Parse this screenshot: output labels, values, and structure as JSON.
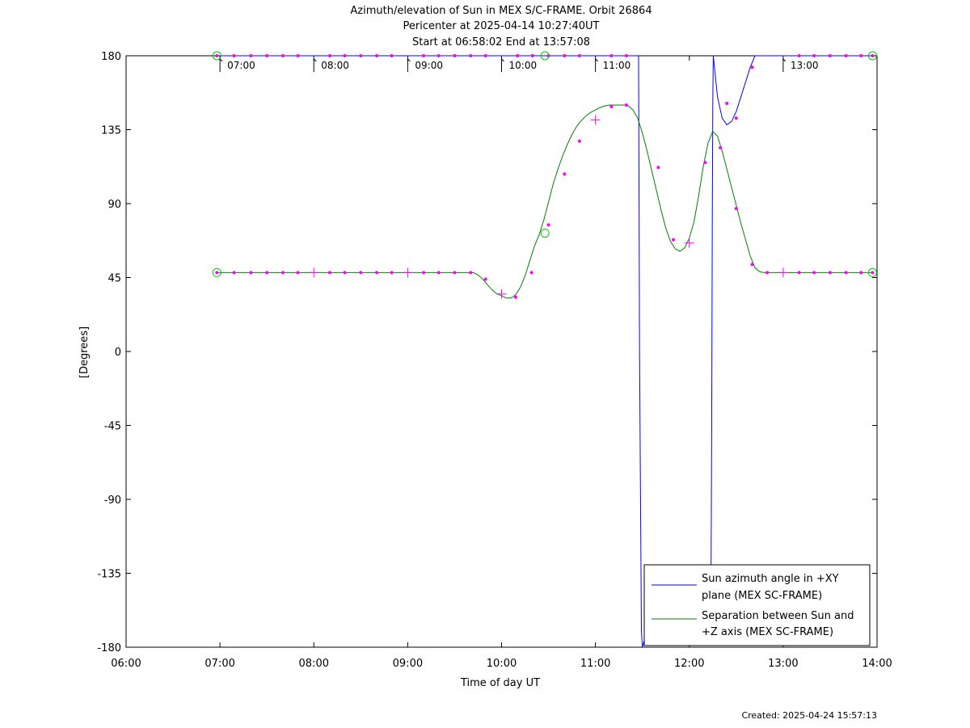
{
  "chart_data": {
    "type": "line",
    "title_lines": [
      "Azimuth/elevation of Sun in MEX S/C-FRAME.  Orbit 26864",
      "Pericenter at 2025-04-14 10:27:40UT",
      "Start at 06:58:02 End at 13:57:08"
    ],
    "xlabel": "Time of day UT",
    "ylabel": "[Degrees]",
    "xlim": [
      6,
      14
    ],
    "ylim": [
      -180,
      180
    ],
    "xtick_values": [
      6,
      7,
      8,
      9,
      10,
      11,
      12,
      13,
      14
    ],
    "xtick_labels": [
      "06:00",
      "07:00",
      "08:00",
      "09:00",
      "10:00",
      "11:00",
      "12:00",
      "13:00",
      "14:00"
    ],
    "ytick_values": [
      180,
      135,
      90,
      45,
      0,
      -45,
      -90,
      -135,
      -180
    ],
    "ytick_labels": [
      "180",
      "135",
      "90",
      "45",
      "0",
      "-45",
      "-90",
      "-135",
      "-180"
    ],
    "top_hour_marks": [
      {
        "x": 7,
        "label": "07:00"
      },
      {
        "x": 8,
        "label": "08:00"
      },
      {
        "x": 9,
        "label": "09:00"
      },
      {
        "x": 10,
        "label": "10:00"
      },
      {
        "x": 11,
        "label": "11:00"
      },
      {
        "x": 13,
        "label": "13:00"
      }
    ],
    "series": [
      {
        "name": "Sun azimuth angle in +XY plane (MEX SC-FRAME)",
        "legend_lines": [
          "Sun azimuth angle in +XY",
          "plane (MEX SC-FRAME)"
        ],
        "color": "#0000ff",
        "segments": [
          {
            "x": [
              6.967,
              7.0,
              8.0,
              9.0,
              10.0,
              11.0,
              11.3,
              11.45,
              11.46
            ],
            "y": [
              180,
              180,
              180,
              180,
              180,
              180,
              180,
              180,
              180
            ]
          },
          {
            "x": [
              11.46,
              11.465,
              11.47,
              11.48,
              11.49,
              11.5
            ],
            "y": [
              180,
              90,
              0,
              -90,
              -170,
              -180
            ]
          },
          {
            "x": [
              11.5,
              11.55
            ],
            "y": [
              -180,
              -170
            ]
          },
          {
            "x": [
              12.23,
              12.235,
              12.24,
              12.245,
              12.25,
              12.255
            ],
            "y": [
              -150,
              -100,
              -20,
              80,
              150,
              180
            ]
          },
          {
            "x": [
              12.255,
              12.3,
              12.35,
              12.4,
              12.45,
              12.5,
              12.55,
              12.6,
              12.65,
              12.7,
              12.75
            ],
            "y": [
              180,
              155,
              142,
              138,
              140,
              146,
              155,
              164,
              173,
              180,
              180
            ]
          },
          {
            "x": [
              12.75,
              13.0,
              13.5,
              13.95
            ],
            "y": [
              180,
              180,
              180,
              180
            ]
          }
        ]
      },
      {
        "name": "Separation between Sun and +Z axis (MEX SC-FRAME)",
        "legend_lines": [
          "Separation between Sun and",
          "+Z axis (MEX SC-FRAME)"
        ],
        "color": "#008000",
        "segments": [
          {
            "x": [
              6.967,
              7.0,
              7.5,
              8.0,
              8.5,
              9.0,
              9.5,
              9.7,
              9.75,
              9.8,
              9.85,
              9.9,
              9.95,
              10.0,
              10.05,
              10.1,
              10.15,
              10.2,
              10.25,
              10.3,
              10.35,
              10.4,
              10.45,
              10.5,
              10.55,
              10.6,
              10.65,
              10.7,
              10.75,
              10.8,
              10.85,
              10.9,
              10.95,
              11.0,
              11.05,
              11.1,
              11.15,
              11.2,
              11.25,
              11.3,
              11.35,
              11.4,
              11.45,
              11.5,
              11.55,
              11.6,
              11.65,
              11.7,
              11.75,
              11.8,
              11.85,
              11.9,
              11.95,
              12.0,
              12.05,
              12.1,
              12.15,
              12.2,
              12.25,
              12.3,
              12.35,
              12.4,
              12.45,
              12.5,
              12.55,
              12.6,
              12.65,
              12.7,
              12.75,
              12.8,
              13.0,
              13.5,
              13.95
            ],
            "y": [
              48,
              48,
              48,
              48,
              48,
              48,
              48,
              48,
              46.5,
              44,
              40.5,
              37.5,
              35,
              34,
              32.5,
              32.5,
              34.5,
              39,
              46,
              55,
              64,
              71,
              80,
              91,
              102,
              111,
              119,
              126,
              132,
              137,
              140.5,
              143.5,
              145.5,
              147,
              148.5,
              149.5,
              150,
              150,
              150,
              150,
              149.5,
              147,
              142,
              133,
              122,
              110,
              98,
              86,
              75,
              67,
              62.5,
              61,
              63,
              69,
              79,
              95,
              113,
              127,
              134,
              131,
              122,
              111,
              100,
              89,
              78,
              68,
              58,
              51,
              48.5,
              48,
              48,
              48,
              48
            ]
          }
        ]
      }
    ],
    "markers": {
      "dot_color": "#ff00ff",
      "circle_color": "#00cc00",
      "circles": [
        {
          "x": 6.967,
          "y": 180
        },
        {
          "x": 10.462,
          "y": 180
        },
        {
          "x": 13.952,
          "y": 180
        },
        {
          "x": 6.967,
          "y": 48
        },
        {
          "x": 10.462,
          "y": 72
        },
        {
          "x": 13.952,
          "y": 48
        }
      ],
      "crosses": [
        {
          "x": 10.0,
          "y": 35
        },
        {
          "x": 11.0,
          "y": 141
        },
        {
          "x": 12.0,
          "y": 66
        },
        {
          "x": 8.0,
          "y": 48
        },
        {
          "x": 9.0,
          "y": 48
        },
        {
          "x": 13.0,
          "y": 48
        }
      ],
      "dots": [
        {
          "x": 6.967,
          "y": 180
        },
        {
          "x": 7.15,
          "y": 180
        },
        {
          "x": 7.33,
          "y": 180
        },
        {
          "x": 7.5,
          "y": 180
        },
        {
          "x": 7.67,
          "y": 180
        },
        {
          "x": 7.83,
          "y": 180
        },
        {
          "x": 8.17,
          "y": 180
        },
        {
          "x": 8.33,
          "y": 180
        },
        {
          "x": 8.5,
          "y": 180
        },
        {
          "x": 8.67,
          "y": 180
        },
        {
          "x": 8.83,
          "y": 180
        },
        {
          "x": 9.17,
          "y": 180
        },
        {
          "x": 9.33,
          "y": 180
        },
        {
          "x": 9.5,
          "y": 180
        },
        {
          "x": 9.67,
          "y": 180
        },
        {
          "x": 9.83,
          "y": 180
        },
        {
          "x": 10.17,
          "y": 180
        },
        {
          "x": 10.33,
          "y": 180
        },
        {
          "x": 10.5,
          "y": 180
        },
        {
          "x": 10.67,
          "y": 180
        },
        {
          "x": 10.83,
          "y": 180
        },
        {
          "x": 11.17,
          "y": 180
        },
        {
          "x": 11.33,
          "y": 180
        },
        {
          "x": 12.4,
          "y": 151
        },
        {
          "x": 12.5,
          "y": 142
        },
        {
          "x": 12.67,
          "y": 173
        },
        {
          "x": 13.17,
          "y": 180
        },
        {
          "x": 13.33,
          "y": 180
        },
        {
          "x": 13.5,
          "y": 180
        },
        {
          "x": 13.67,
          "y": 180
        },
        {
          "x": 13.83,
          "y": 180
        },
        {
          "x": 13.952,
          "y": 180
        },
        {
          "x": 6.967,
          "y": 48
        },
        {
          "x": 7.15,
          "y": 48
        },
        {
          "x": 7.33,
          "y": 48
        },
        {
          "x": 7.5,
          "y": 48
        },
        {
          "x": 7.67,
          "y": 48
        },
        {
          "x": 7.83,
          "y": 48
        },
        {
          "x": 8.17,
          "y": 48
        },
        {
          "x": 8.33,
          "y": 48
        },
        {
          "x": 8.5,
          "y": 48
        },
        {
          "x": 8.67,
          "y": 48
        },
        {
          "x": 8.83,
          "y": 48
        },
        {
          "x": 9.17,
          "y": 48
        },
        {
          "x": 9.33,
          "y": 48
        },
        {
          "x": 9.5,
          "y": 48
        },
        {
          "x": 9.67,
          "y": 48
        },
        {
          "x": 9.83,
          "y": 44
        },
        {
          "x": 10.15,
          "y": 33
        },
        {
          "x": 10.32,
          "y": 48
        },
        {
          "x": 10.5,
          "y": 77
        },
        {
          "x": 10.67,
          "y": 108
        },
        {
          "x": 10.83,
          "y": 128
        },
        {
          "x": 11.17,
          "y": 149
        },
        {
          "x": 11.33,
          "y": 150
        },
        {
          "x": 11.67,
          "y": 112
        },
        {
          "x": 11.83,
          "y": 68
        },
        {
          "x": 12.17,
          "y": 115
        },
        {
          "x": 12.33,
          "y": 124
        },
        {
          "x": 12.5,
          "y": 87
        },
        {
          "x": 12.67,
          "y": 53
        },
        {
          "x": 12.83,
          "y": 48
        },
        {
          "x": 13.17,
          "y": 48
        },
        {
          "x": 13.33,
          "y": 48
        },
        {
          "x": 13.5,
          "y": 48
        },
        {
          "x": 13.67,
          "y": 48
        },
        {
          "x": 13.83,
          "y": 48
        },
        {
          "x": 13.952,
          "y": 48
        }
      ]
    },
    "legend_position": "bottom-right",
    "grid": false,
    "footer": "Created: 2025-04-24 15:57:13"
  }
}
